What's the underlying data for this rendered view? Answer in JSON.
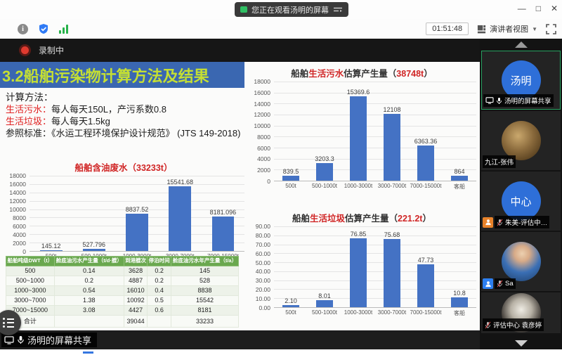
{
  "window": {
    "watching_pill": "您正在观看汤明的屏幕",
    "controls": {
      "minimize": "—",
      "maximize": "□",
      "close": "✕"
    }
  },
  "toolbar": {
    "time": "01:51:48",
    "view_mode": "演讲者视图"
  },
  "recording": {
    "label": "录制中"
  },
  "slide": {
    "title": "3.2船舶污染物计算方法及结果",
    "method_heading": "计算方法：",
    "method_lines": [
      {
        "label": "生活污水：",
        "label_color": "#e02020",
        "text": "每人每天150L，产污系数0.8"
      },
      {
        "label": "生活垃圾：",
        "label_color": "#e02020",
        "text": "每人每天1.5kg"
      },
      {
        "label": "参照标准：",
        "label_color": "#1c1c1c",
        "text": "《水运工程环境保护设计规范》 (JTS 149-2018)"
      }
    ]
  },
  "colors": {
    "bar": "#4472c4",
    "red_text": "#d02525",
    "table_header": "#6aa84f",
    "title_band": "#3a67b1",
    "title_text": "#c5df33",
    "active_border": "#27a060"
  },
  "chart_data": [
    {
      "type": "bar",
      "title_segments": [
        {
          "text": "船舶含油废水（33233t）",
          "color": "#d02525"
        }
      ],
      "categories": [
        "500t",
        "500-1000t",
        "1000-3000t",
        "3000-7000t",
        "7000-15000t"
      ],
      "values": [
        145.12,
        527.796,
        8837.52,
        15541.68,
        8181.096
      ],
      "value_labels": [
        "145.12",
        "527.796",
        "8837.52",
        "15541.68",
        "8181.096"
      ],
      "ylim": [
        0,
        18000
      ],
      "ystep": 2000,
      "tick_decimals": 0,
      "xlabel": "",
      "ylabel": "",
      "grid": true,
      "legend": "none"
    },
    {
      "type": "bar",
      "title_segments": [
        {
          "text": "船舶",
          "color": "#333333"
        },
        {
          "text": "生活污水",
          "color": "#d02525"
        },
        {
          "text": "估算产生量（",
          "color": "#333333"
        },
        {
          "text": "38748t",
          "color": "#d02525"
        },
        {
          "text": "）",
          "color": "#333333"
        }
      ],
      "categories": [
        "500t",
        "500-1000t",
        "1000-3000t",
        "3000-7000t",
        "7000-15000t",
        "客船"
      ],
      "values": [
        839.5,
        3203.3,
        15369.6,
        12108,
        6363.36,
        864
      ],
      "value_labels": [
        "839.5",
        "3203.3",
        "15369.6",
        "12108",
        "6363.36",
        "864"
      ],
      "ylim": [
        0,
        18000
      ],
      "ystep": 2000,
      "tick_decimals": 0,
      "xlabel": "",
      "ylabel": "",
      "grid": true,
      "legend": "none"
    },
    {
      "type": "bar",
      "title_segments": [
        {
          "text": "船舶",
          "color": "#333333"
        },
        {
          "text": "生活垃圾",
          "color": "#d02525"
        },
        {
          "text": "估算产生量（",
          "color": "#333333"
        },
        {
          "text": "221.2t",
          "color": "#d02525"
        },
        {
          "text": "）",
          "color": "#333333"
        }
      ],
      "categories": [
        "500t",
        "500-1000t",
        "1000-3000t",
        "3000-7000t",
        "7000-15000t",
        "客船"
      ],
      "values": [
        2.1,
        8.01,
        76.85,
        75.68,
        47.73,
        10.8
      ],
      "value_labels": [
        "2.10",
        "8.01",
        "76.85",
        "75.68",
        "47.73",
        "10.8"
      ],
      "ylim": [
        0,
        90
      ],
      "ystep": 10,
      "tick_decimals": 2,
      "xlabel": "",
      "ylabel": "",
      "grid": true,
      "legend": "none"
    }
  ],
  "table": {
    "headers": [
      "船舶吨级DWT（t）",
      "舱底油污水产生量（t/d·艘）",
      "到港艘次",
      "停泊时间",
      "舱底油污水年产生量（t/a）"
    ],
    "rows": [
      [
        "500",
        "0.14",
        "3628",
        "0.2",
        "145"
      ],
      [
        "500~1000",
        "0.2",
        "4887",
        "0.2",
        "528"
      ],
      [
        "1000~3000",
        "0.54",
        "16010",
        "0.4",
        "8838"
      ],
      [
        "3000~7000",
        "1.38",
        "10092",
        "0.5",
        "15542"
      ],
      [
        "7000~15000",
        "3.08",
        "4427",
        "0.6",
        "8181"
      ],
      [
        "合计",
        "",
        "39044",
        "",
        "33233"
      ]
    ]
  },
  "sidebar": {
    "participants": [
      {
        "label": "汤明的屏幕共享",
        "avatar": "initials",
        "avatar_text": "汤明",
        "active": true,
        "plate": "",
        "icons": [
          "screen",
          "mic"
        ]
      },
      {
        "label": "九江-张伟",
        "avatar": "photo-warm",
        "avatar_text": "",
        "active": false,
        "plate": "",
        "icons": []
      },
      {
        "label": "朱美-评估中…",
        "avatar": "initials",
        "avatar_text": "中心",
        "active": false,
        "plate": "orange",
        "icons": [
          "mic-muted"
        ]
      },
      {
        "label": "Sa",
        "avatar": "photo-child",
        "avatar_text": "",
        "active": false,
        "plate": "blue",
        "icons": [
          "mic-muted"
        ]
      },
      {
        "label": "评估中心 袁彦婷",
        "avatar": "photo-minnie",
        "avatar_text": "",
        "active": false,
        "plate": "",
        "icons": [
          "mic-muted"
        ]
      }
    ]
  },
  "bottom_bar": {
    "share_label": "汤明的屏幕共享"
  }
}
